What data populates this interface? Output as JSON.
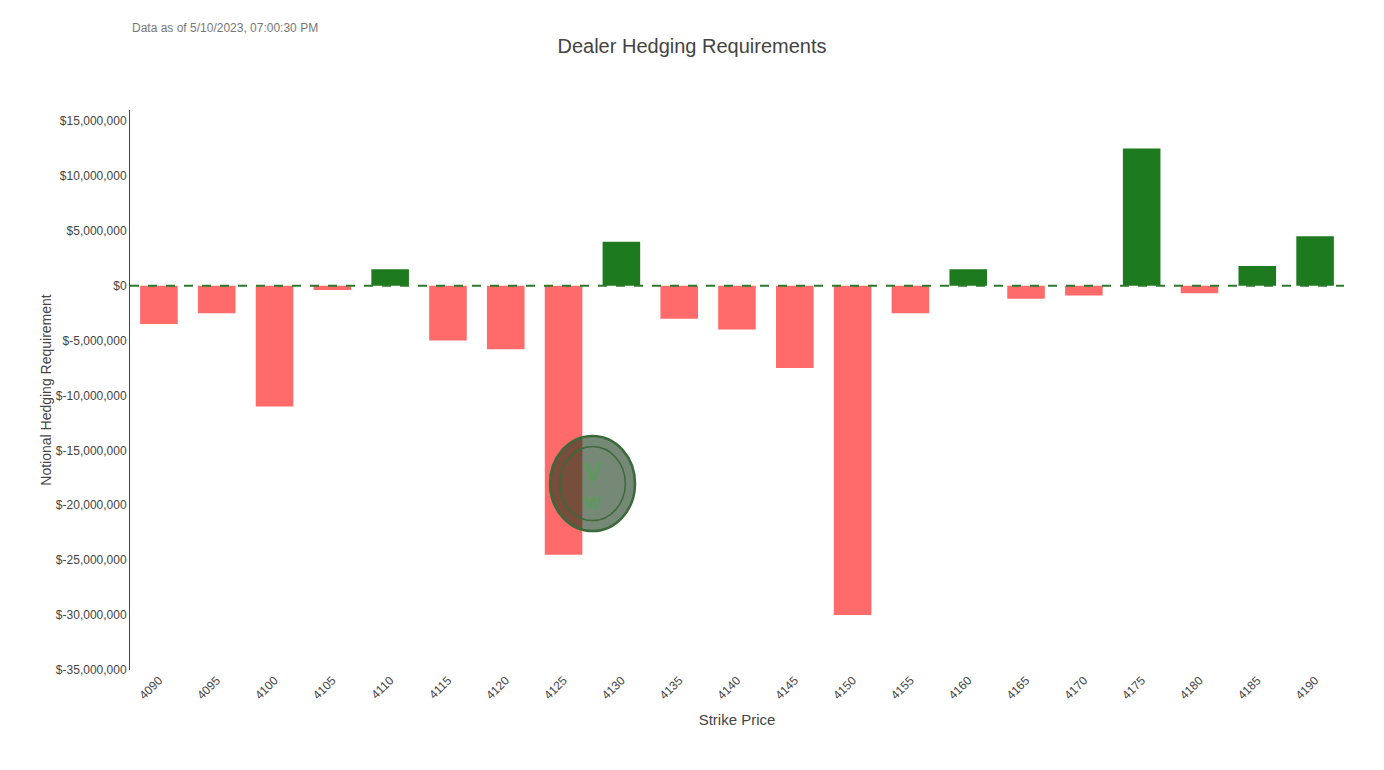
{
  "chart_data": {
    "type": "bar",
    "title": "Dealer Hedging Requirements",
    "x_label": "Strike Price",
    "y_label": "Notional Hedging Requirement",
    "annotations": [
      "Data as of 5/10/2023, 07:00:30 PM",
      "V",
      "W"
    ],
    "categories": [
      "4090",
      "4095",
      "4100",
      "4105",
      "4110",
      "4115",
      "4120",
      "4125",
      "4130",
      "4135",
      "4140",
      "4145",
      "4150",
      "4155",
      "4160",
      "4165",
      "4170",
      "4175",
      "4180",
      "4185",
      "4190"
    ],
    "values": [
      -3500000,
      -2500000,
      -11000000,
      -400000,
      1500000,
      -5000000,
      -5800000,
      -24500000,
      4000000,
      -3000000,
      -4000000,
      -7500000,
      -30000000,
      -2500000,
      1500000,
      -1200000,
      -900000,
      12500000,
      -700000,
      1800000,
      4500000
    ],
    "colors": [
      "#ff6b6b",
      "#ff6b6b",
      "#ff6b6b",
      "#ff6b6b",
      "#1e7a1e",
      "#ff6b6b",
      "#ff6b6b",
      "#ff6b6b",
      "#1e7a1e",
      "#ff6b6b",
      "#ff6b6b",
      "#ff6b6b",
      "#ff6b6b",
      "#ff6b6b",
      "#1e7a1e",
      "#ff6b6b",
      "#ff6b6b",
      "#1e7a1e",
      "#ff6b6b",
      "#1e7a1e",
      "#1e7a1e"
    ],
    "ylim": [
      -35000000,
      16000000
    ],
    "yticks": [
      {
        "value": -35000000,
        "label": "$-35,000,000"
      },
      {
        "value": -30000000,
        "label": "$-30,000,000"
      },
      {
        "value": -25000000,
        "label": "$-25,000,000"
      },
      {
        "value": -20000000,
        "label": "$-20,000,000"
      },
      {
        "value": -15000000,
        "label": "$-15,000,000"
      },
      {
        "value": -10000000,
        "label": "$-10,000,000"
      },
      {
        "value": -5000000,
        "label": "$-5,000,000"
      },
      {
        "value": 0,
        "label": "$0"
      },
      {
        "value": 5000000,
        "label": "$5,000,000"
      },
      {
        "value": 10000000,
        "label": "$10,000,000"
      },
      {
        "value": 15000000,
        "label": "$15,000,000"
      }
    ],
    "grid": false
  }
}
